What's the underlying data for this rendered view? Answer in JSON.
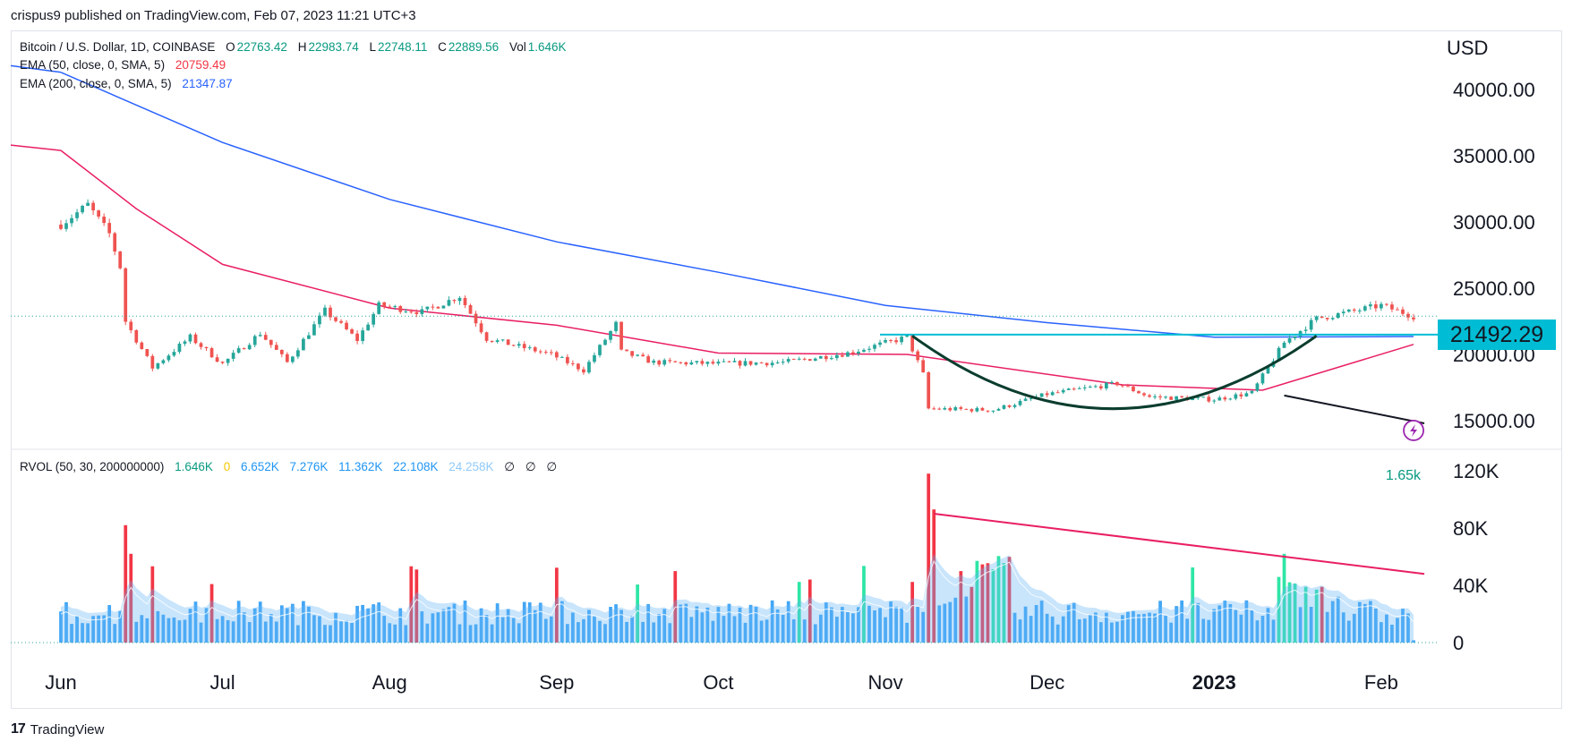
{
  "header": {
    "published": "crispus9 published on TradingView.com, Feb 07, 2023 11:21 UTC+3"
  },
  "legend": {
    "symbol": "Bitcoin / U.S. Dollar, 1D, COINBASE",
    "o_label": "O",
    "o_val": "22763.42",
    "h_label": "H",
    "h_val": "22983.74",
    "l_label": "L",
    "l_val": "22748.11",
    "c_label": "C",
    "c_val": "22889.56",
    "vol_label": "Vol",
    "vol_val": "1.646K",
    "ema50_label": "EMA (50, close, 0, SMA, 5)",
    "ema50_val": "20759.49",
    "ema200_label": "EMA (200, close, 0, SMA, 5)",
    "ema200_val": "21347.87",
    "rvol_label": "RVOL (50, 30, 200000000)",
    "rvol_vals": [
      "1.646K",
      "0",
      "6.652K",
      "7.276K",
      "11.362K",
      "22.108K",
      "24.258K",
      "∅",
      "∅",
      "∅"
    ]
  },
  "axis": {
    "currency": "USD",
    "price_ticks": [
      "40000.00",
      "35000.00",
      "30000.00",
      "25000.00",
      "20000.00",
      "15000.00"
    ],
    "volume_ticks": [
      "120K",
      "80K",
      "40K",
      "0"
    ],
    "months": [
      "Jun",
      "Jul",
      "Aug",
      "Sep",
      "Oct",
      "Nov",
      "Dec",
      "2023",
      "Feb"
    ],
    "price_tag": "21492.29",
    "volume_tag": "1.65k"
  },
  "footer": {
    "brand": "TradingView"
  },
  "colors": {
    "up": "#26a69a",
    "down": "#ef5350",
    "ema50": "#e91e63",
    "ema200": "#2962ff",
    "resistance": "#00bcd4",
    "volume_up": "#2ee6a6",
    "volume_down": "#f23645",
    "volume_base": "#2196f3"
  },
  "chart_data": [
    {
      "type": "candlestick",
      "title": "Bitcoin / U.S. Dollar, 1D, COINBASE",
      "ylabel": "USD",
      "ylim": [
        13000,
        42000
      ],
      "x_months": [
        "Jun",
        "Jul",
        "Aug",
        "Sep",
        "Oct",
        "Nov",
        "Dec",
        "2023",
        "Feb"
      ],
      "close_path": [
        [
          "2022-06-01",
          29800
        ],
        [
          "2022-06-06",
          31300
        ],
        [
          "2022-06-10",
          29100
        ],
        [
          "2022-06-12",
          26600
        ],
        [
          "2022-06-13",
          22500
        ],
        [
          "2022-06-18",
          19000
        ],
        [
          "2022-06-25",
          21300
        ],
        [
          "2022-07-01",
          19300
        ],
        [
          "2022-07-08",
          21600
        ],
        [
          "2022-07-13",
          19400
        ],
        [
          "2022-07-20",
          23300
        ],
        [
          "2022-07-26",
          21100
        ],
        [
          "2022-07-30",
          23700
        ],
        [
          "2022-08-07",
          23200
        ],
        [
          "2022-08-14",
          24400
        ],
        [
          "2022-08-19",
          21200
        ],
        [
          "2022-08-31",
          20000
        ],
        [
          "2022-09-06",
          18800
        ],
        [
          "2022-09-12",
          22300
        ],
        [
          "2022-09-13",
          20200
        ],
        [
          "2022-09-19",
          19400
        ],
        [
          "2022-10-01",
          19300
        ],
        [
          "2022-10-13",
          19400
        ],
        [
          "2022-10-25",
          20100
        ],
        [
          "2022-11-05",
          21300
        ],
        [
          "2022-11-08",
          18500
        ],
        [
          "2022-11-09",
          15900
        ],
        [
          "2022-11-21",
          15800
        ],
        [
          "2022-12-01",
          17000
        ],
        [
          "2022-12-14",
          17800
        ],
        [
          "2022-12-20",
          16800
        ],
        [
          "2023-01-01",
          16600
        ],
        [
          "2023-01-08",
          17100
        ],
        [
          "2023-01-14",
          20900
        ],
        [
          "2023-01-20",
          22700
        ],
        [
          "2023-02-01",
          23700
        ],
        [
          "2023-02-07",
          22890
        ]
      ],
      "series": [
        {
          "name": "EMA (50, close, 0, SMA, 5)",
          "last": 20759.49,
          "points": [
            [
              "2022-06-01",
              35400
            ],
            [
              "2022-06-15",
              31000
            ],
            [
              "2022-07-01",
              26800
            ],
            [
              "2022-08-01",
              23500
            ],
            [
              "2022-09-01",
              22200
            ],
            [
              "2022-10-01",
              20100
            ],
            [
              "2022-11-05",
              20000
            ],
            [
              "2022-12-15",
              17700
            ],
            [
              "2023-01-10",
              17300
            ],
            [
              "2023-02-07",
              20760
            ]
          ]
        },
        {
          "name": "EMA (200, close, 0, SMA, 5)",
          "last": 21347.87,
          "points": [
            [
              "2022-06-01",
              41300
            ],
            [
              "2022-07-01",
              36000
            ],
            [
              "2022-08-01",
              31700
            ],
            [
              "2022-09-01",
              28500
            ],
            [
              "2022-10-01",
              26200
            ],
            [
              "2022-11-01",
              23700
            ],
            [
              "2022-12-01",
              22400
            ],
            [
              "2023-01-01",
              21300
            ],
            [
              "2023-02-07",
              21348
            ]
          ]
        }
      ],
      "annotations": {
        "resistance_level": 21492.29,
        "last_close": 22889.56,
        "cup_pattern": [
          [
            "2022-11-06",
            21400
          ],
          [
            "2022-12-13",
            15900
          ],
          [
            "2023-01-20",
            21400
          ]
        ],
        "arrow_line": [
          [
            "2023-01-14",
            16900
          ],
          [
            "2023-02-09",
            14800
          ]
        ]
      }
    },
    {
      "type": "bar",
      "title": "RVOL (50, 30, 200000000)",
      "ylim": [
        0,
        120000
      ],
      "y_ticks": [
        "120K",
        "80K",
        "40K",
        "0"
      ],
      "last_value": 1646,
      "spikes": [
        [
          "2022-06-13",
          82000
        ],
        [
          "2022-06-14",
          62000
        ],
        [
          "2022-11-09",
          118000
        ],
        [
          "2022-11-10",
          93000
        ],
        [
          "2023-01-14",
          62000
        ]
      ],
      "trend_line": [
        [
          "2022-11-10",
          90000
        ],
        [
          "2023-02-09",
          48000
        ]
      ]
    }
  ]
}
